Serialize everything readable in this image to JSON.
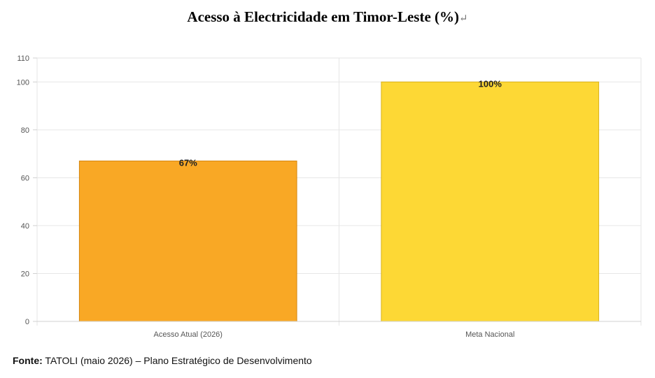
{
  "title": "Acesso à Electricidade em Timor-Leste (%)",
  "title_mark": "↵",
  "source": {
    "label": "Fonte:",
    "text": "TATOLI (maio 2026) – Plano Estratégico de Desenvolvimento"
  },
  "chart_data": {
    "type": "bar",
    "categories": [
      "Acesso Atual (2026)",
      "Meta Nacional"
    ],
    "values": [
      67,
      100
    ],
    "data_labels": [
      "67%",
      "100%"
    ],
    "colors": [
      "#F9A825",
      "#FDD835"
    ],
    "border_colors": [
      "#D4860F",
      "#D9B21A"
    ],
    "ylim": [
      0,
      110
    ],
    "yticks": [
      0,
      20,
      40,
      60,
      80,
      100,
      110
    ],
    "grid": true,
    "legend": "none"
  }
}
